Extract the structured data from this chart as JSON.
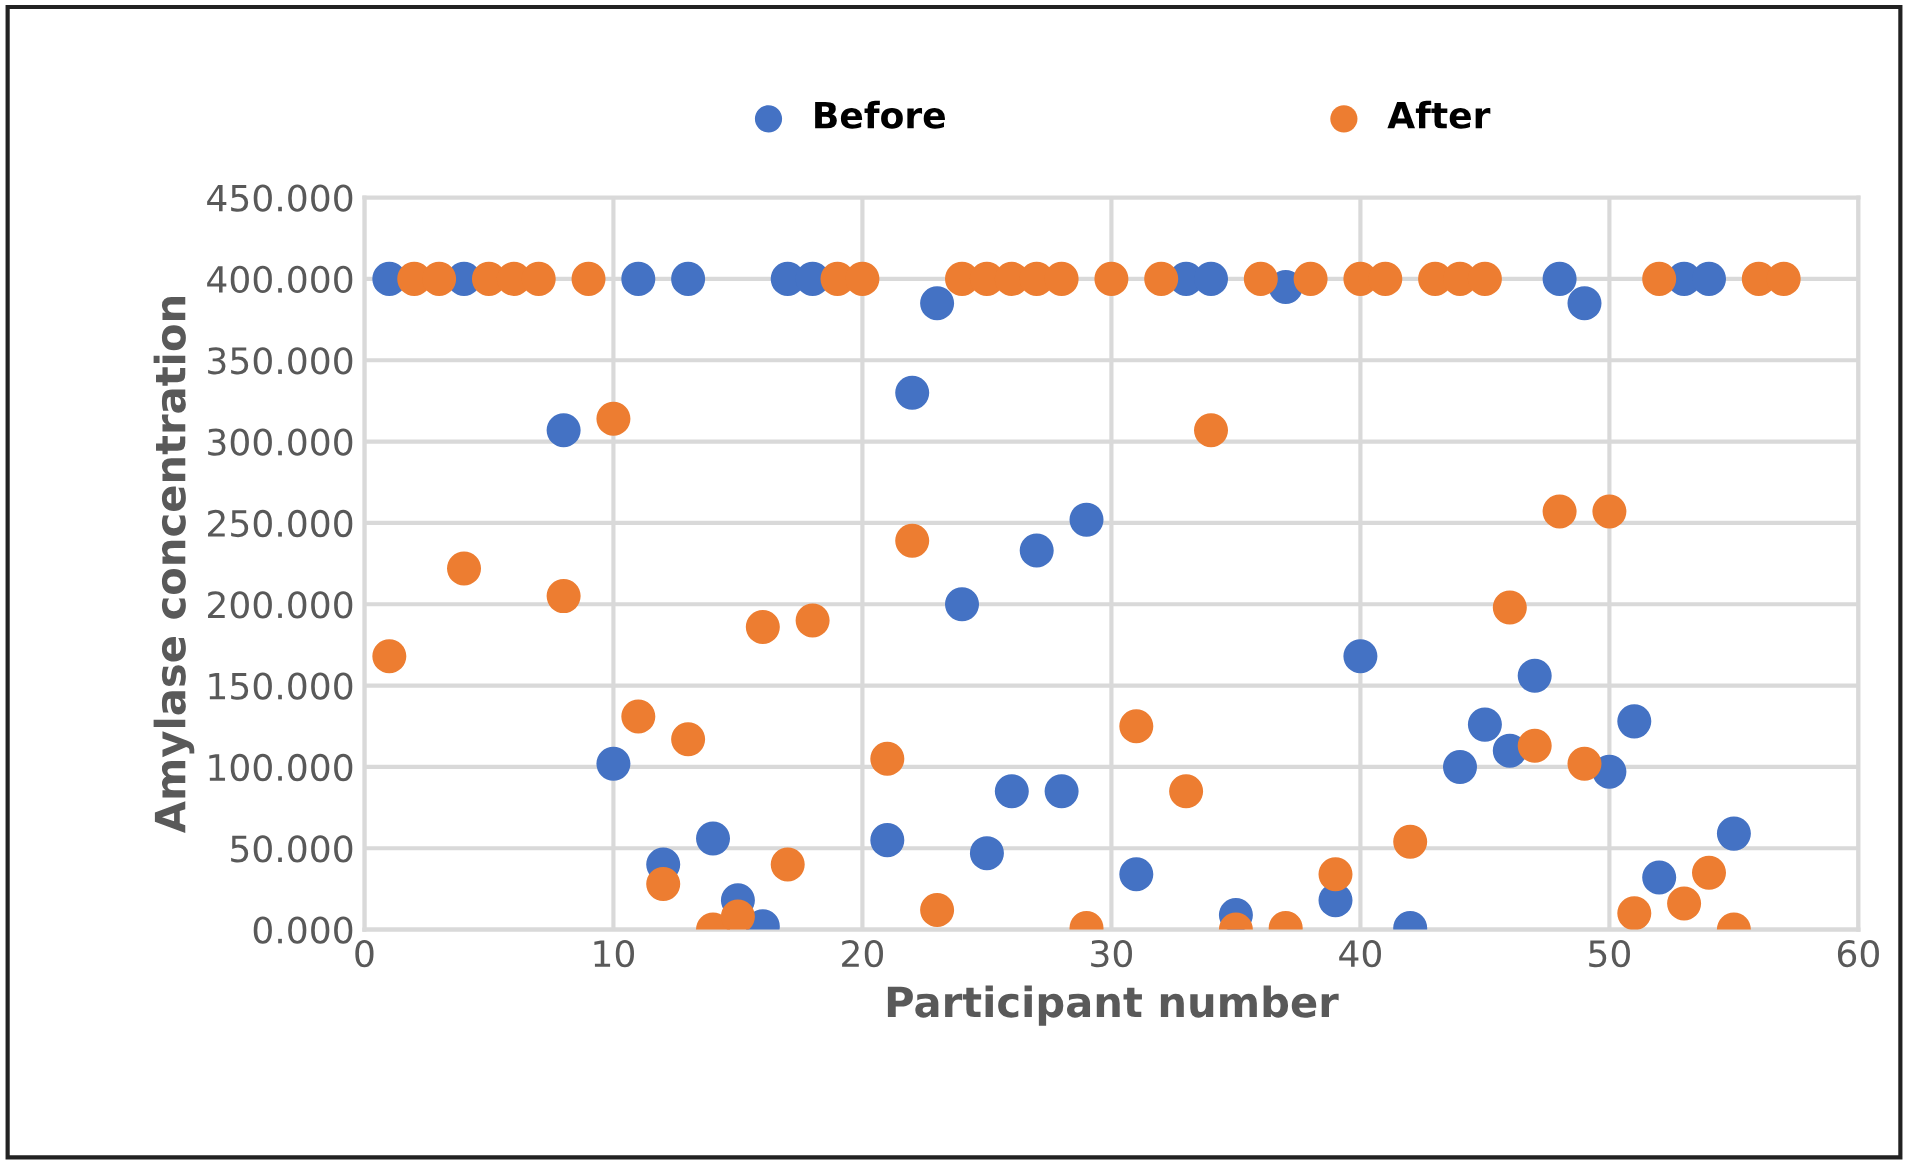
{
  "chart_data": {
    "type": "scatter",
    "xlabel": "Participant number",
    "ylabel": "Amylase concentration",
    "xlim": [
      0,
      60
    ],
    "xticks": [
      0,
      10,
      20,
      30,
      40,
      50,
      60
    ],
    "ylim": [
      0,
      450
    ],
    "yticks": [
      {
        "value": 0,
        "label": "0.000"
      },
      {
        "value": 50,
        "label": "50.000"
      },
      {
        "value": 100,
        "label": "100.000"
      },
      {
        "value": 150,
        "label": "150.000"
      },
      {
        "value": 200,
        "label": "200.000"
      },
      {
        "value": 250,
        "label": "250.000"
      },
      {
        "value": 300,
        "label": "300.000"
      },
      {
        "value": 350,
        "label": "350.000"
      },
      {
        "value": 400,
        "label": "400.000"
      },
      {
        "value": 450,
        "label": "450.000"
      }
    ],
    "grid": true,
    "legend": "top",
    "marker": "circle",
    "series": [
      {
        "name": "Before",
        "color": "#4472c4",
        "x": [
          1,
          4,
          8,
          10,
          11,
          12,
          13,
          14,
          15,
          16,
          17,
          18,
          21,
          22,
          23,
          24,
          25,
          26,
          27,
          28,
          29,
          31,
          33,
          34,
          35,
          37,
          39,
          40,
          42,
          44,
          45,
          46,
          47,
          48,
          49,
          50,
          51,
          52,
          53,
          54,
          55
        ],
        "values": [
          400,
          400,
          307,
          102,
          400,
          40,
          400,
          56,
          18,
          2,
          400,
          400,
          55,
          330,
          385,
          200,
          47,
          85,
          233,
          85,
          252,
          34,
          400,
          400,
          9,
          395,
          18,
          168,
          1,
          100,
          126,
          110,
          156,
          400,
          385,
          97,
          128,
          32,
          400,
          400,
          59
        ]
      },
      {
        "name": "After",
        "color": "#ed7d31",
        "x": [
          1,
          2,
          3,
          4,
          5,
          6,
          7,
          8,
          9,
          10,
          11,
          12,
          13,
          14,
          15,
          16,
          17,
          18,
          19,
          20,
          21,
          22,
          23,
          24,
          25,
          26,
          27,
          28,
          29,
          30,
          31,
          32,
          33,
          34,
          35,
          36,
          37,
          38,
          39,
          40,
          41,
          42,
          43,
          44,
          45,
          46,
          47,
          48,
          49,
          50,
          51,
          52,
          53,
          54,
          55,
          56,
          57
        ],
        "values": [
          168,
          400,
          400,
          222,
          400,
          400,
          400,
          205,
          400,
          314,
          131,
          28,
          117,
          0,
          8,
          186,
          40,
          190,
          400,
          400,
          105,
          239,
          12,
          400,
          400,
          400,
          400,
          400,
          1,
          400,
          125,
          400,
          85,
          307,
          0,
          400,
          1,
          400,
          34,
          400,
          400,
          54,
          400,
          400,
          400,
          198,
          113,
          257,
          102,
          257,
          10,
          400,
          16,
          35,
          0,
          400,
          400
        ]
      }
    ]
  }
}
